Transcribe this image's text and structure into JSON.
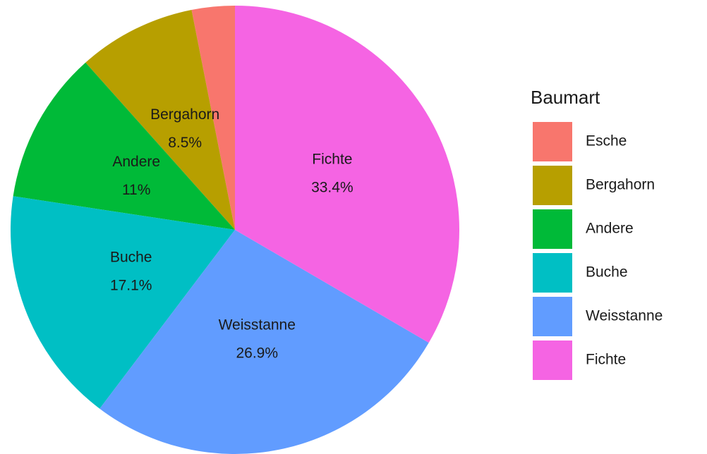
{
  "chart_data": {
    "type": "pie",
    "legend_title": "Baumart",
    "categories": [
      "Esche",
      "Bergahorn",
      "Andere",
      "Buche",
      "Weisstanne",
      "Fichte"
    ],
    "values": [
      3.1,
      8.5,
      11,
      17.1,
      26.9,
      33.4
    ],
    "value_labels": [
      null,
      "8.5%",
      "11%",
      "17.1%",
      "26.9%",
      "33.4%"
    ],
    "colors": [
      "#F8766D",
      "#B79F00",
      "#00BA38",
      "#00BFC4",
      "#619CFF",
      "#F564E3"
    ],
    "legend": "right"
  }
}
